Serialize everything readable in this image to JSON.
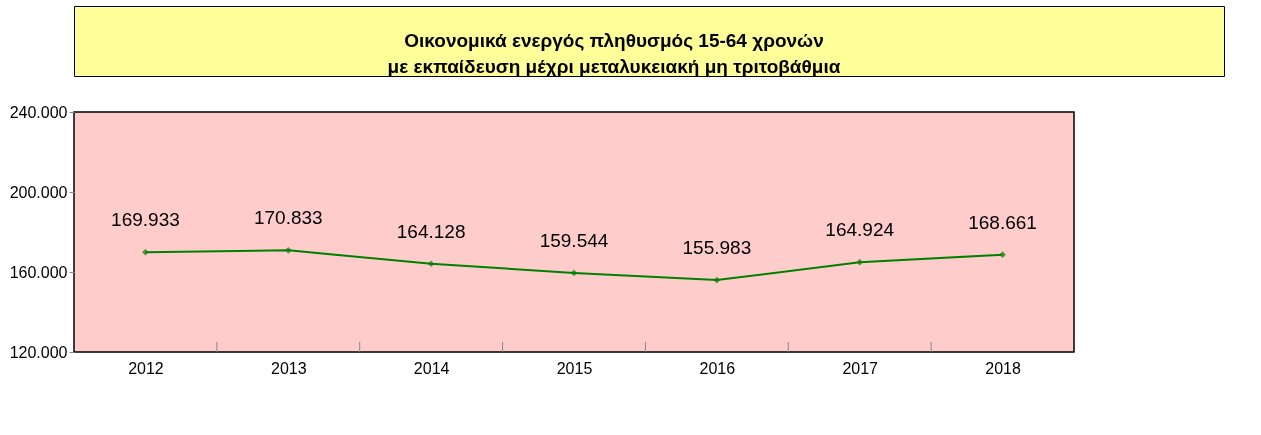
{
  "chart_data": {
    "type": "line",
    "title": "Οικονομικά ενεργός πληθυσμός 15-64 χρονών\nμε εκπαίδευση μέχρι μεταλυκειακή μη τριτοβάθμια",
    "categories": [
      "2012",
      "2013",
      "2014",
      "2015",
      "2016",
      "2017",
      "2018"
    ],
    "series": [
      {
        "color": "#008000",
        "values": [
          169933,
          170833,
          164128,
          159544,
          155983,
          164924,
          168661
        ],
        "value_labels": [
          "169.933",
          "170.833",
          "164.128",
          "159.544",
          "155.983",
          "164.924",
          "168.661"
        ]
      }
    ],
    "ylim": [
      120000,
      240000
    ],
    "yticks": [
      {
        "value": 120000,
        "label": "120.000"
      },
      {
        "value": 160000,
        "label": "160.000"
      },
      {
        "value": 200000,
        "label": "200.000"
      },
      {
        "value": 240000,
        "label": "240.000"
      }
    ],
    "grid": false,
    "marker": "diamond",
    "line_style": "solid"
  }
}
